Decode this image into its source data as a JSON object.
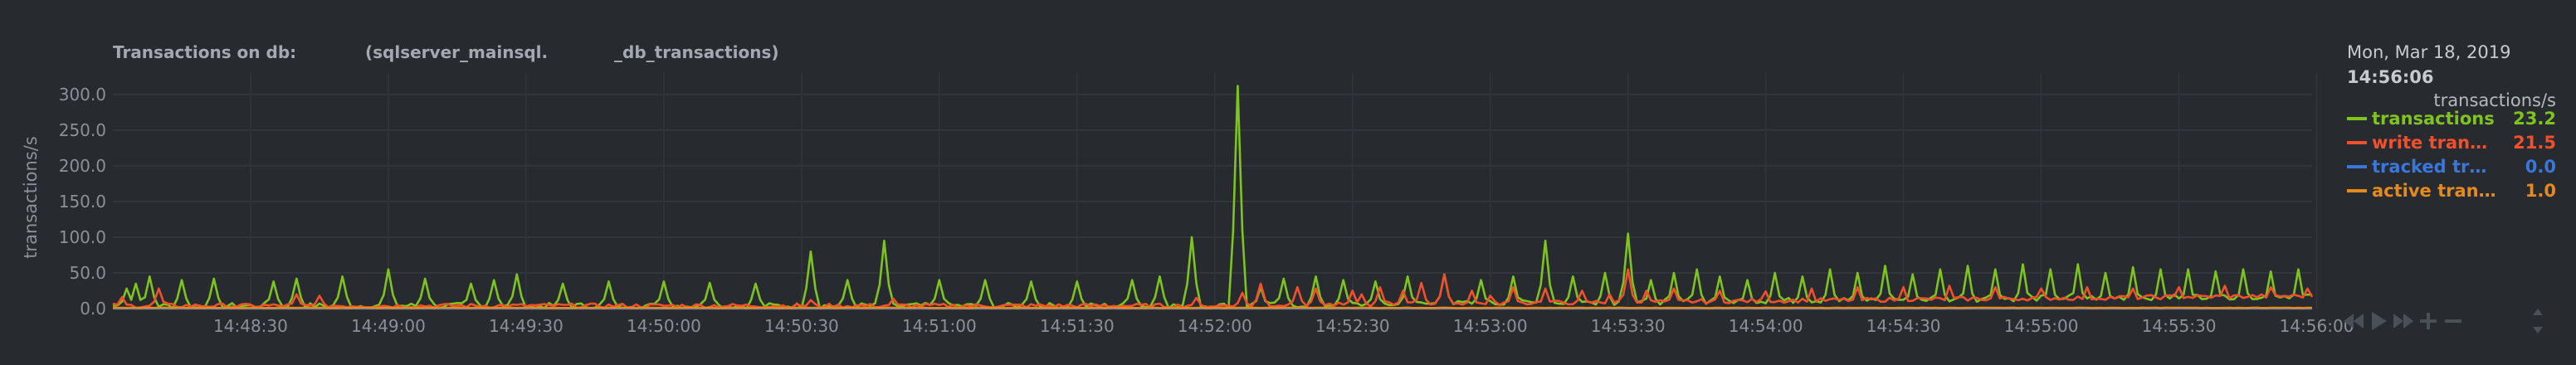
{
  "chart_data": {
    "type": "line",
    "title": "Transactions on db:",
    "title_part2": "(sqlserver_mainsql.",
    "title_part3": "_db_transactions)",
    "ylabel": "transactions/s",
    "ylim": [
      0,
      330
    ],
    "y_ticks": [
      "300.0",
      "250.0",
      "200.0",
      "150.0",
      "100.0",
      "50.0",
      "0.0"
    ],
    "y_tick_values": [
      300,
      250,
      200,
      150,
      100,
      50,
      0
    ],
    "x_ticks": [
      "14:48:30",
      "14:49:00",
      "14:49:30",
      "14:50:00",
      "14:50:30",
      "14:51:00",
      "14:51:30",
      "14:52:00",
      "14:52:30",
      "14:53:00",
      "14:53:30",
      "14:54:00",
      "14:54:30",
      "14:55:00",
      "14:55:30",
      "14:56:00"
    ],
    "x_tick_seconds": [
      30,
      60,
      90,
      120,
      150,
      180,
      210,
      240,
      270,
      300,
      330,
      360,
      390,
      420,
      450,
      480
    ],
    "x_start": "14:48:07",
    "x_end": "14:56:06",
    "grid": true,
    "series": [
      {
        "name": "transactions",
        "color": "#7fc41d",
        "baseline": 4,
        "noise": 8,
        "spikes": [
          [
            3,
            28
          ],
          [
            5,
            35
          ],
          [
            8,
            45
          ],
          [
            15,
            40
          ],
          [
            22,
            42
          ],
          [
            35,
            38
          ],
          [
            40,
            42
          ],
          [
            50,
            45
          ],
          [
            60,
            55
          ],
          [
            68,
            42
          ],
          [
            78,
            35
          ],
          [
            83,
            40
          ],
          [
            88,
            48
          ],
          [
            98,
            35
          ],
          [
            108,
            38
          ],
          [
            120,
            38
          ],
          [
            130,
            36
          ],
          [
            140,
            35
          ],
          [
            152,
            80
          ],
          [
            160,
            40
          ],
          [
            168,
            95
          ],
          [
            180,
            40
          ],
          [
            190,
            40
          ],
          [
            200,
            38
          ],
          [
            210,
            38
          ],
          [
            222,
            40
          ],
          [
            228,
            45
          ],
          [
            235,
            100
          ],
          [
            245,
            312
          ],
          [
            250,
            30
          ],
          [
            255,
            42
          ],
          [
            262,
            45
          ],
          [
            268,
            40
          ],
          [
            275,
            38
          ],
          [
            282,
            45
          ],
          [
            290,
            48
          ],
          [
            298,
            40
          ],
          [
            305,
            45
          ],
          [
            312,
            95
          ],
          [
            318,
            45
          ],
          [
            325,
            50
          ],
          [
            330,
            105
          ],
          [
            335,
            40
          ],
          [
            340,
            50
          ],
          [
            345,
            55
          ],
          [
            350,
            45
          ],
          [
            356,
            40
          ],
          [
            362,
            50
          ],
          [
            368,
            45
          ],
          [
            374,
            55
          ],
          [
            380,
            50
          ],
          [
            386,
            60
          ],
          [
            392,
            48
          ],
          [
            398,
            55
          ],
          [
            404,
            60
          ],
          [
            410,
            55
          ],
          [
            416,
            62
          ],
          [
            422,
            55
          ],
          [
            428,
            62
          ],
          [
            434,
            50
          ],
          [
            440,
            58
          ],
          [
            446,
            55
          ],
          [
            452,
            55
          ],
          [
            458,
            52
          ],
          [
            464,
            55
          ],
          [
            470,
            52
          ],
          [
            476,
            55
          ],
          [
            480,
            30
          ]
        ]
      },
      {
        "name": "write transactions",
        "color": "#f2502d",
        "baseline": 4,
        "noise": 6,
        "spikes": [
          [
            2,
            16
          ],
          [
            10,
            28
          ],
          [
            40,
            20
          ],
          [
            45,
            18
          ],
          [
            152,
            12
          ],
          [
            170,
            14
          ],
          [
            236,
            15
          ],
          [
            246,
            22
          ],
          [
            250,
            35
          ],
          [
            258,
            30
          ],
          [
            262,
            28
          ],
          [
            270,
            25
          ],
          [
            272,
            20
          ],
          [
            276,
            30
          ],
          [
            281,
            25
          ],
          [
            285,
            36
          ],
          [
            290,
            48
          ],
          [
            296,
            25
          ],
          [
            300,
            18
          ],
          [
            305,
            30
          ],
          [
            312,
            28
          ],
          [
            320,
            25
          ],
          [
            326,
            20
          ],
          [
            330,
            55
          ],
          [
            334,
            25
          ],
          [
            340,
            28
          ],
          [
            350,
            25
          ],
          [
            360,
            24
          ],
          [
            370,
            28
          ],
          [
            380,
            30
          ],
          [
            390,
            30
          ],
          [
            400,
            32
          ],
          [
            410,
            30
          ],
          [
            420,
            28
          ],
          [
            430,
            30
          ],
          [
            440,
            28
          ],
          [
            450,
            30
          ],
          [
            460,
            32
          ],
          [
            470,
            30
          ],
          [
            478,
            28
          ]
        ]
      },
      {
        "name": "tracked transactions",
        "color": "#3b76da",
        "baseline": 0,
        "noise": 0,
        "spikes": []
      },
      {
        "name": "active transactions",
        "color": "#e58a1b",
        "baseline": 1,
        "noise": 0.5,
        "spikes": []
      }
    ]
  },
  "legend": {
    "date": "Mon, Mar 18, 2019",
    "time": "14:56:06",
    "units": "transactions/s",
    "items": [
      {
        "label": "transactions",
        "value": "23.2",
        "color": "#7fc41d"
      },
      {
        "label": "write tran…",
        "value": "21.5",
        "color": "#f2502d"
      },
      {
        "label": "tracked tr…",
        "value": "0.0",
        "color": "#3b76da"
      },
      {
        "label": "active tran…",
        "value": "1.0",
        "color": "#e58a1b"
      }
    ]
  },
  "controls": [
    "rewind-icon",
    "play-icon",
    "forward-icon",
    "zoom-in-icon",
    "zoom-out-icon",
    "resize-icon"
  ]
}
